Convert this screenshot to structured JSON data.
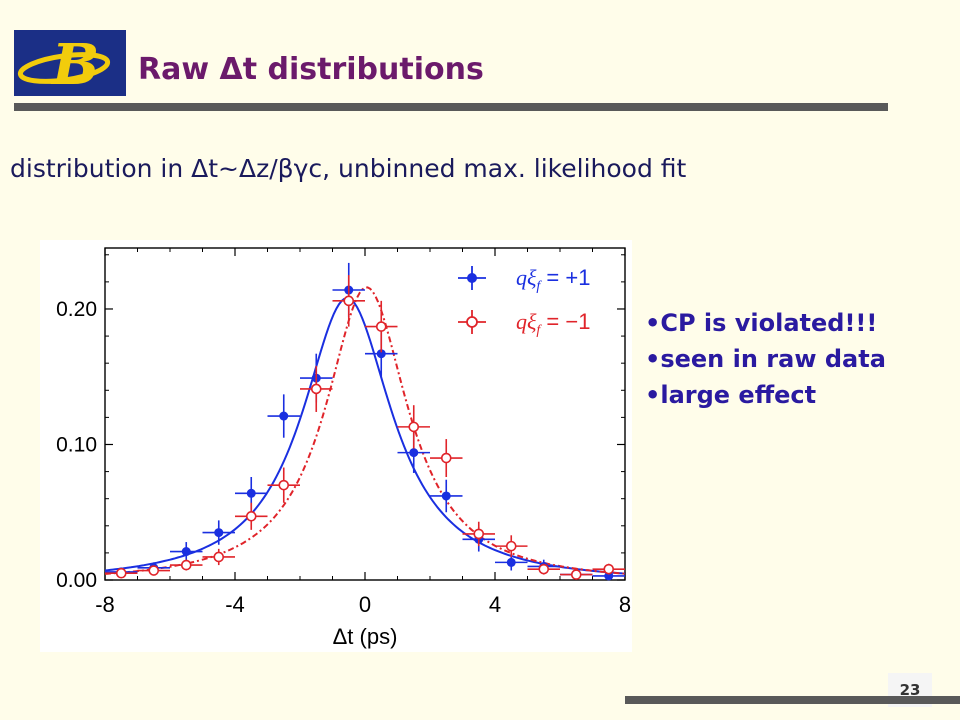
{
  "header": {
    "title": "Raw Δt distributions",
    "logo_letter": "B"
  },
  "subtitle": "distribution in Δt~Δz/βγc, unbinned max. likelihood fit",
  "bullets": [
    "•CP is violated!!!",
    "•seen in raw data",
    "•large effect"
  ],
  "slide_number": "23",
  "colors": {
    "title": "#6b1a6b",
    "subtitle": "#1a1a5c",
    "bullets": "#2a1aa0",
    "series_plus": "#1a2fe0",
    "series_minus": "#e0242a",
    "logo_bg": "#1b2f86",
    "logo_letter": "#f2cc0c"
  },
  "chart_data": {
    "type": "scatter",
    "xlabel": "Δt (ps)",
    "ylabel": "",
    "xlim": [
      -8,
      8
    ],
    "ylim": [
      0,
      0.245
    ],
    "x_ticks": [
      "-8",
      "-4",
      "0",
      "4",
      "8"
    ],
    "x_tick_values": [
      -8,
      -4,
      0,
      4,
      8
    ],
    "y_ticks": [
      "0.00",
      "0.10",
      "0.20"
    ],
    "y_tick_values": [
      0.0,
      0.1,
      0.2
    ],
    "legend_position": "top-right",
    "series": [
      {
        "name": "qξf = +1",
        "legend_label": "qξ",
        "legend_sub": "f",
        "legend_value": "= +1",
        "style": "filled",
        "color": "#1a2fe0",
        "x": [
          -7.5,
          -6.5,
          -5.5,
          -4.5,
          -3.5,
          -2.5,
          -1.5,
          -0.5,
          0.5,
          1.5,
          2.5,
          3.5,
          4.5,
          5.5,
          6.5,
          7.5
        ],
        "y": [
          0.006,
          0.009,
          0.021,
          0.035,
          0.064,
          0.121,
          0.149,
          0.214,
          0.167,
          0.094,
          0.062,
          0.03,
          0.013,
          0.01,
          0.004,
          0.003
        ],
        "yerr": [
          0.003,
          0.004,
          0.007,
          0.009,
          0.012,
          0.016,
          0.018,
          0.02,
          0.018,
          0.015,
          0.012,
          0.009,
          0.006,
          0.005,
          0.003,
          0.003
        ],
        "fit_mean": -0.55,
        "fit_peak": 0.208,
        "fit_width": 1.7
      },
      {
        "name": "qξf = −1",
        "legend_label": "qξ",
        "legend_sub": "f",
        "legend_value": "= −1",
        "style": "open",
        "color": "#e0242a",
        "x": [
          -7.5,
          -6.5,
          -5.5,
          -4.5,
          -3.5,
          -2.5,
          -1.5,
          -0.5,
          0.5,
          1.5,
          2.5,
          3.5,
          4.5,
          5.5,
          6.5,
          7.5
        ],
        "y": [
          0.005,
          0.007,
          0.011,
          0.017,
          0.047,
          0.07,
          0.141,
          0.206,
          0.187,
          0.113,
          0.09,
          0.034,
          0.025,
          0.008,
          0.004,
          0.008
        ],
        "yerr": [
          0.003,
          0.003,
          0.004,
          0.006,
          0.01,
          0.013,
          0.017,
          0.019,
          0.019,
          0.016,
          0.014,
          0.009,
          0.008,
          0.004,
          0.003,
          0.004
        ],
        "fit_mean": 0.05,
        "fit_peak": 0.216,
        "fit_width": 1.55
      }
    ]
  }
}
